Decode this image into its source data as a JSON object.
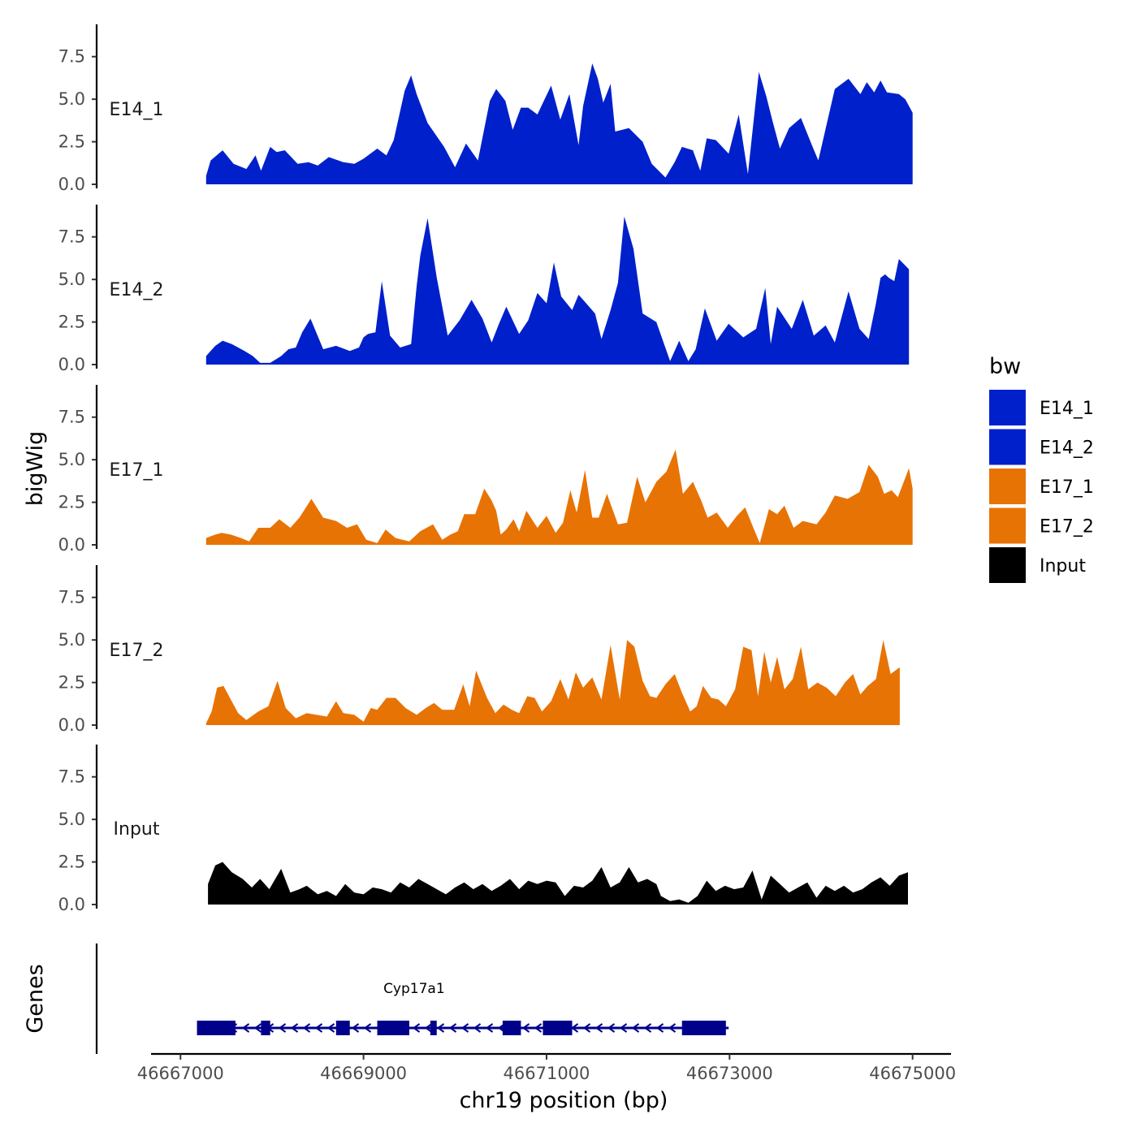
{
  "chart_data": {
    "type": "area",
    "chromosome": "chr19",
    "xlabel": "chr19 position (bp)",
    "ylabel_signal": "bigWig",
    "ylabel_genes": "Genes",
    "xlim": [
      46666980,
      46675420
    ],
    "x_ticks": [
      46667000,
      46669000,
      46671000,
      46673000,
      46675000
    ],
    "x_tick_labels": [
      "46667000",
      "46669000",
      "46671000",
      "46673000",
      "46675000"
    ],
    "ylim": [
      0,
      9.3
    ],
    "y_ticks": [
      0,
      2.5,
      5,
      7.5
    ],
    "y_tick_labels": [
      "0.0",
      "2.5",
      "5.0",
      "7.5"
    ],
    "legend": {
      "title": "bw",
      "position": "right",
      "entries": [
        {
          "label": "E14_1",
          "color": "#0020CC"
        },
        {
          "label": "E14_2",
          "color": "#0020CC"
        },
        {
          "label": "E17_1",
          "color": "#E87305"
        },
        {
          "label": "E17_2",
          "color": "#E87305"
        },
        {
          "label": "Input",
          "color": "#000000"
        }
      ]
    },
    "series": [
      {
        "name": "E14_1",
        "label": "E14_1",
        "color": "#0020CC",
        "x": [
          46667280,
          46667330,
          46667460,
          46667580,
          46667720,
          46667820,
          46667880,
          46667980,
          46668050,
          46668140,
          46668280,
          46668400,
          46668500,
          46668620,
          46668780,
          46668900,
          46669000,
          46669150,
          46669250,
          46669330,
          46669450,
          46669520,
          46669580,
          46669700,
          46669880,
          46670000,
          46670120,
          46670250,
          46670380,
          46670450,
          46670550,
          46670630,
          46670720,
          46670800,
          46670900,
          46671050,
          46671150,
          46671250,
          46671350,
          46671400,
          46671500,
          46671560,
          46671620,
          46671700,
          46671750,
          46671900,
          46672050,
          46672150,
          46672300,
          46672400,
          46672480,
          46672600,
          46672680,
          46672750,
          46672850,
          46672990,
          46673100,
          46673200,
          46673320,
          46673400,
          46673470,
          46673550,
          46673650,
          46673780,
          46673900,
          46673970,
          46674150,
          46674300,
          46674430,
          46674500,
          46674580,
          46674650,
          46674720,
          46674850,
          46674920,
          46675000
        ],
        "y": [
          0.5,
          1.4,
          2,
          1.2,
          0.9,
          1.7,
          0.8,
          2.2,
          1.9,
          2,
          1.2,
          1.3,
          1.1,
          1.6,
          1.3,
          1.2,
          1.5,
          2.1,
          1.7,
          2.6,
          5.5,
          6.4,
          5.3,
          3.6,
          2.2,
          1.0,
          2.4,
          1.4,
          4.9,
          5.6,
          4.9,
          3.2,
          4.5,
          4.5,
          4.1,
          5.8,
          3.8,
          5.3,
          2.3,
          4.6,
          7.1,
          6.2,
          4.8,
          5.9,
          3.1,
          3.3,
          2.5,
          1.2,
          0.4,
          1.3,
          2.2,
          2.0,
          0.8,
          2.7,
          2.6,
          1.8,
          4.1,
          0.6,
          6.6,
          5.2,
          3.7,
          2.1,
          3.3,
          3.9,
          2.3,
          1.4,
          5.6,
          6.2,
          5.3,
          6.0,
          5.4,
          6.1,
          5.4,
          5.3,
          5.0,
          4.2
        ]
      },
      {
        "name": "E14_2",
        "label": "E14_2",
        "color": "#0020CC",
        "x": [
          46667280,
          46667380,
          46667460,
          46667560,
          46667700,
          46667790,
          46667870,
          46667980,
          46668100,
          46668180,
          46668260,
          46668330,
          46668420,
          46668560,
          46668700,
          46668850,
          46668950,
          46669000,
          46669050,
          46669130,
          46669200,
          46669290,
          46669400,
          46669520,
          46669580,
          46669620,
          46669700,
          46669800,
          46669920,
          46670050,
          46670180,
          46670300,
          46670400,
          46670480,
          46670560,
          46670700,
          46670800,
          46670900,
          46671000,
          46671080,
          46671160,
          46671280,
          46671350,
          46671400,
          46671530,
          46671600,
          46671700,
          46671780,
          46671850,
          46671950,
          46672050,
          46672200,
          46672350,
          46672450,
          46672550,
          46672630,
          46672730,
          46672860,
          46672990,
          46673150,
          46673290,
          46673390,
          46673450,
          46673520,
          46673680,
          46673800,
          46673920,
          46674050,
          46674150,
          46674300,
          46674420,
          46674520,
          46674600,
          46674650,
          46674700,
          46674740,
          46674800,
          46674850,
          46674960
        ],
        "y": [
          0.5,
          1.1,
          1.4,
          1.2,
          0.8,
          0.5,
          0.1,
          0.1,
          0.5,
          0.9,
          1.0,
          1.9,
          2.7,
          0.9,
          1.1,
          0.8,
          1.0,
          1.6,
          1.8,
          1.9,
          4.9,
          1.7,
          1.0,
          1.2,
          4.6,
          6.4,
          8.6,
          5.1,
          1.7,
          2.6,
          3.8,
          2.7,
          1.3,
          2.4,
          3.4,
          1.8,
          2.6,
          4.2,
          3.6,
          6.0,
          4.0,
          3.2,
          4.1,
          3.8,
          3.0,
          1.5,
          3.2,
          4.8,
          8.7,
          6.8,
          3.0,
          2.5,
          0.2,
          1.4,
          0.2,
          0.9,
          3.3,
          1.4,
          2.4,
          1.6,
          2.1,
          4.5,
          1.2,
          3.4,
          2.1,
          3.8,
          1.7,
          2.3,
          1.3,
          4.3,
          2.1,
          1.5,
          3.6,
          5.1,
          5.3,
          5.1,
          4.9,
          6.2,
          5.6
        ]
      },
      {
        "name": "E17_1",
        "label": "E17_1",
        "color": "#E87305",
        "x": [
          46667280,
          46667380,
          46667450,
          46667550,
          46667660,
          46667750,
          46667850,
          46667980,
          46668080,
          46668200,
          46668300,
          46668430,
          46668560,
          46668700,
          46668820,
          46668930,
          46669030,
          46669150,
          46669240,
          46669350,
          46669500,
          46669620,
          46669760,
          46669860,
          46669950,
          46670030,
          46670100,
          46670220,
          46670320,
          46670400,
          46670450,
          46670500,
          46670560,
          46670640,
          46670700,
          46670780,
          46670900,
          46671000,
          46671100,
          46671180,
          46671260,
          46671330,
          46671420,
          46671500,
          46671570,
          46671660,
          46671780,
          46671880,
          46671990,
          46672080,
          46672200,
          46672310,
          46672410,
          46672490,
          46672600,
          46672690,
          46672760,
          46672860,
          46672980,
          46673080,
          46673170,
          46673260,
          46673330,
          46673430,
          46673520,
          46673600,
          46673700,
          46673800,
          46673950,
          46674050,
          46674150,
          46674290,
          46674420,
          46674520,
          46674620,
          46674690,
          46674770,
          46674840,
          46674960,
          46675000
        ],
        "y": [
          0.4,
          0.6,
          0.7,
          0.6,
          0.4,
          0.2,
          1.0,
          1.0,
          1.5,
          1.0,
          1.6,
          2.7,
          1.6,
          1.4,
          1.0,
          1.2,
          0.3,
          0.1,
          0.9,
          0.4,
          0.2,
          0.8,
          1.2,
          0.3,
          0.6,
          0.8,
          1.8,
          1.8,
          3.3,
          2.6,
          2.0,
          0.6,
          0.9,
          1.5,
          0.8,
          2.0,
          1.0,
          1.7,
          0.7,
          1.3,
          3.2,
          1.9,
          4.4,
          1.6,
          1.6,
          3.0,
          1.2,
          1.3,
          4.0,
          2.5,
          3.7,
          4.3,
          5.6,
          3.0,
          3.7,
          2.6,
          1.6,
          1.9,
          1.0,
          1.7,
          2.2,
          1.0,
          0.1,
          2.1,
          1.8,
          2.3,
          1.0,
          1.4,
          1.2,
          1.9,
          2.9,
          2.7,
          3.1,
          4.7,
          4.0,
          3.0,
          3.2,
          2.8,
          4.5,
          3.3
        ]
      },
      {
        "name": "E17_2",
        "label": "E17_2",
        "color": "#E87305",
        "x": [
          46667280,
          46667340,
          46667400,
          46667470,
          46667540,
          46667630,
          46667720,
          46667850,
          46667960,
          46668060,
          46668150,
          46668260,
          46668380,
          46668490,
          46668600,
          46668700,
          46668780,
          46668900,
          46669000,
          46669080,
          46669150,
          46669250,
          46669350,
          46669460,
          46669580,
          46669680,
          46669770,
          46669860,
          46669990,
          46670090,
          46670160,
          46670230,
          46670350,
          46670440,
          46670530,
          46670620,
          46670700,
          46670790,
          46670870,
          46670950,
          46671050,
          46671150,
          46671240,
          46671320,
          46671400,
          46671500,
          46671600,
          46671700,
          46671800,
          46671880,
          46671960,
          46672050,
          46672130,
          46672200,
          46672300,
          46672400,
          46672480,
          46672570,
          46672640,
          46672710,
          46672800,
          46672880,
          46672960,
          46673060,
          46673150,
          46673240,
          46673310,
          46673380,
          46673450,
          46673520,
          46673600,
          46673690,
          46673780,
          46673860,
          46673960,
          46674060,
          46674160,
          46674260,
          46674350,
          46674430,
          46674510,
          46674600,
          46674680,
          46674760,
          46674860
        ],
        "y": [
          0.1,
          0.8,
          2.2,
          2.3,
          1.6,
          0.7,
          0.3,
          0.8,
          1.1,
          2.6,
          1.0,
          0.4,
          0.7,
          0.6,
          0.5,
          1.4,
          0.7,
          0.6,
          0.2,
          1.0,
          0.9,
          1.6,
          1.6,
          1.0,
          0.6,
          1.0,
          1.3,
          0.9,
          0.9,
          2.4,
          1.1,
          3.2,
          1.6,
          0.7,
          1.2,
          0.9,
          0.7,
          1.7,
          1.6,
          0.8,
          1.4,
          2.7,
          1.5,
          3.1,
          2.2,
          2.8,
          1.5,
          4.7,
          1.5,
          5.0,
          4.6,
          2.6,
          1.7,
          1.6,
          2.4,
          3.0,
          1.9,
          0.8,
          1.1,
          2.3,
          1.6,
          1.5,
          1.1,
          2.1,
          4.6,
          4.4,
          1.7,
          4.3,
          2.5,
          4.0,
          2.1,
          2.7,
          4.6,
          2.1,
          2.5,
          2.2,
          1.7,
          2.5,
          3.0,
          1.8,
          2.3,
          2.7,
          5.0,
          3.0,
          3.4
        ]
      },
      {
        "name": "Input",
        "label": "Input",
        "color": "#000000",
        "x": [
          46667300,
          46667380,
          46667460,
          46667560,
          46667680,
          46667780,
          46667870,
          46667970,
          46668100,
          46668200,
          46668300,
          46668380,
          46668500,
          46668600,
          46668700,
          46668800,
          46668900,
          46669000,
          46669100,
          46669200,
          46669300,
          46669400,
          46669500,
          46669600,
          46669700,
          46669800,
          46669900,
          46670000,
          46670100,
          46670200,
          46670300,
          46670400,
          46670500,
          46670600,
          46670700,
          46670800,
          46670900,
          46671000,
          46671100,
          46671200,
          46671300,
          46671400,
          46671500,
          46671600,
          46671700,
          46671800,
          46671900,
          46672000,
          46672100,
          46672200,
          46672250,
          46672350,
          46672450,
          46672550,
          46672650,
          46672750,
          46672850,
          46672950,
          46673050,
          46673150,
          46673250,
          46673350,
          46673450,
          46673550,
          46673650,
          46673750,
          46673850,
          46673950,
          46674050,
          46674150,
          46674250,
          46674350,
          46674450,
          46674550,
          46674650,
          46674750,
          46674850,
          46674950
        ],
        "y": [
          1.2,
          2.3,
          2.5,
          1.9,
          1.5,
          1.0,
          1.5,
          0.9,
          2.1,
          0.7,
          0.9,
          1.1,
          0.6,
          0.8,
          0.5,
          1.2,
          0.7,
          0.6,
          1.0,
          0.9,
          0.7,
          1.3,
          1.0,
          1.5,
          1.2,
          0.9,
          0.6,
          1.0,
          1.3,
          0.9,
          1.2,
          0.8,
          1.1,
          1.5,
          0.9,
          1.4,
          1.2,
          1.4,
          1.3,
          0.5,
          1.1,
          1.0,
          1.4,
          2.2,
          1.0,
          1.3,
          2.2,
          1.3,
          1.5,
          1.2,
          0.5,
          0.2,
          0.3,
          0.1,
          0.5,
          1.4,
          0.8,
          1.1,
          0.9,
          1.0,
          2.0,
          0.3,
          1.7,
          1.2,
          0.7,
          1.0,
          1.3,
          0.4,
          1.1,
          0.8,
          1.1,
          0.7,
          0.9,
          1.3,
          1.6,
          1.1,
          1.7,
          1.9
        ]
      }
    ],
    "genes": [
      {
        "name": "Cyp17a1",
        "label": "Cyp17a1",
        "start": 46667180,
        "end": 46672990,
        "strand": "-",
        "exons": [
          [
            46667180,
            46667600
          ],
          [
            46667880,
            46667980
          ],
          [
            46668700,
            46668850
          ],
          [
            46669150,
            46669500
          ],
          [
            46669730,
            46669800
          ],
          [
            46670520,
            46670720
          ],
          [
            46670960,
            46671280
          ],
          [
            46672480,
            46672960
          ]
        ]
      }
    ]
  }
}
